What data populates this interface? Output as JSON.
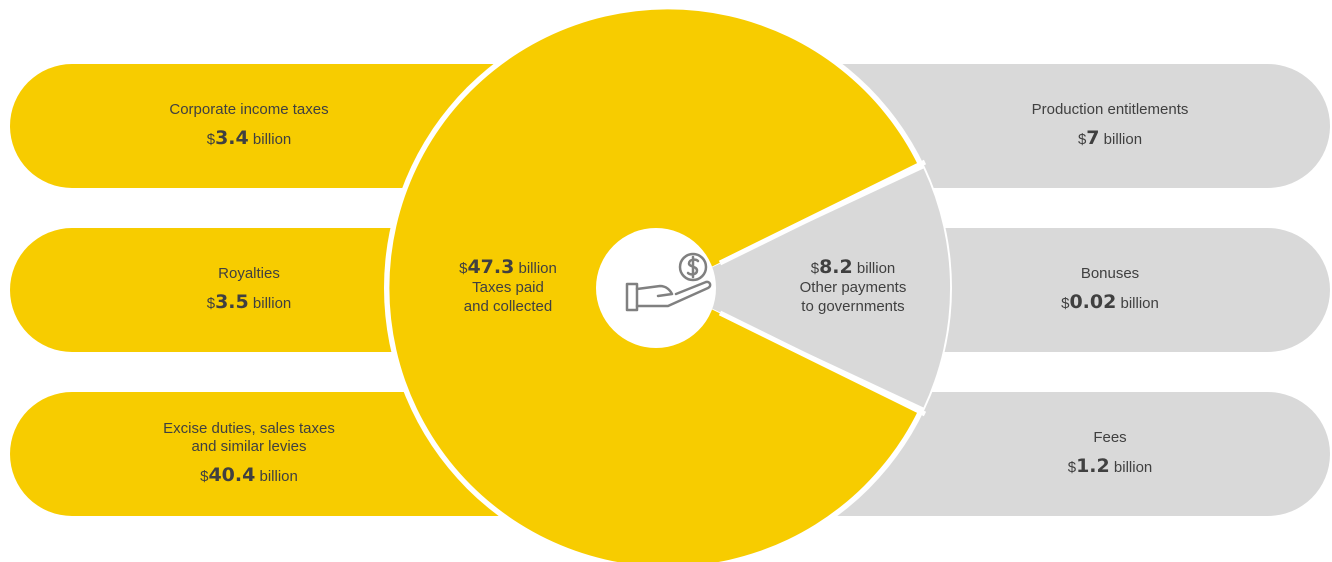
{
  "left_items": [
    {
      "label": "Corporate income taxes",
      "currency": "$",
      "value": "3.4",
      "unit": " billion"
    },
    {
      "label": "Royalties",
      "currency": "$",
      "value": "3.5",
      "unit": " billion"
    },
    {
      "label": "Excise duties, sales taxes\nand similar levies",
      "currency": "$",
      "value": "40.4",
      "unit": " billion"
    }
  ],
  "right_items": [
    {
      "label": "Production entitlements",
      "currency": "$",
      "value": "7",
      "unit": " billion"
    },
    {
      "label": "Bonuses",
      "currency": "$",
      "value": "0.02",
      "unit": " billion"
    },
    {
      "label": "Fees",
      "currency": "$",
      "value": "1.2",
      "unit": " billion"
    }
  ],
  "center": {
    "taxes": {
      "currency": "$",
      "value": "47.3",
      "unit": " billion",
      "line1": "Taxes paid",
      "line2": "and collected"
    },
    "other": {
      "currency": "$",
      "value": "8.2",
      "unit": " billion",
      "line1": "Other payments",
      "line2": "to governments"
    },
    "icon": "hand-holding-dollar-icon"
  },
  "colors": {
    "yellow": "#f7cc00",
    "gray": "#d9d9d9",
    "text": "#404040",
    "icon": "#808080"
  }
}
